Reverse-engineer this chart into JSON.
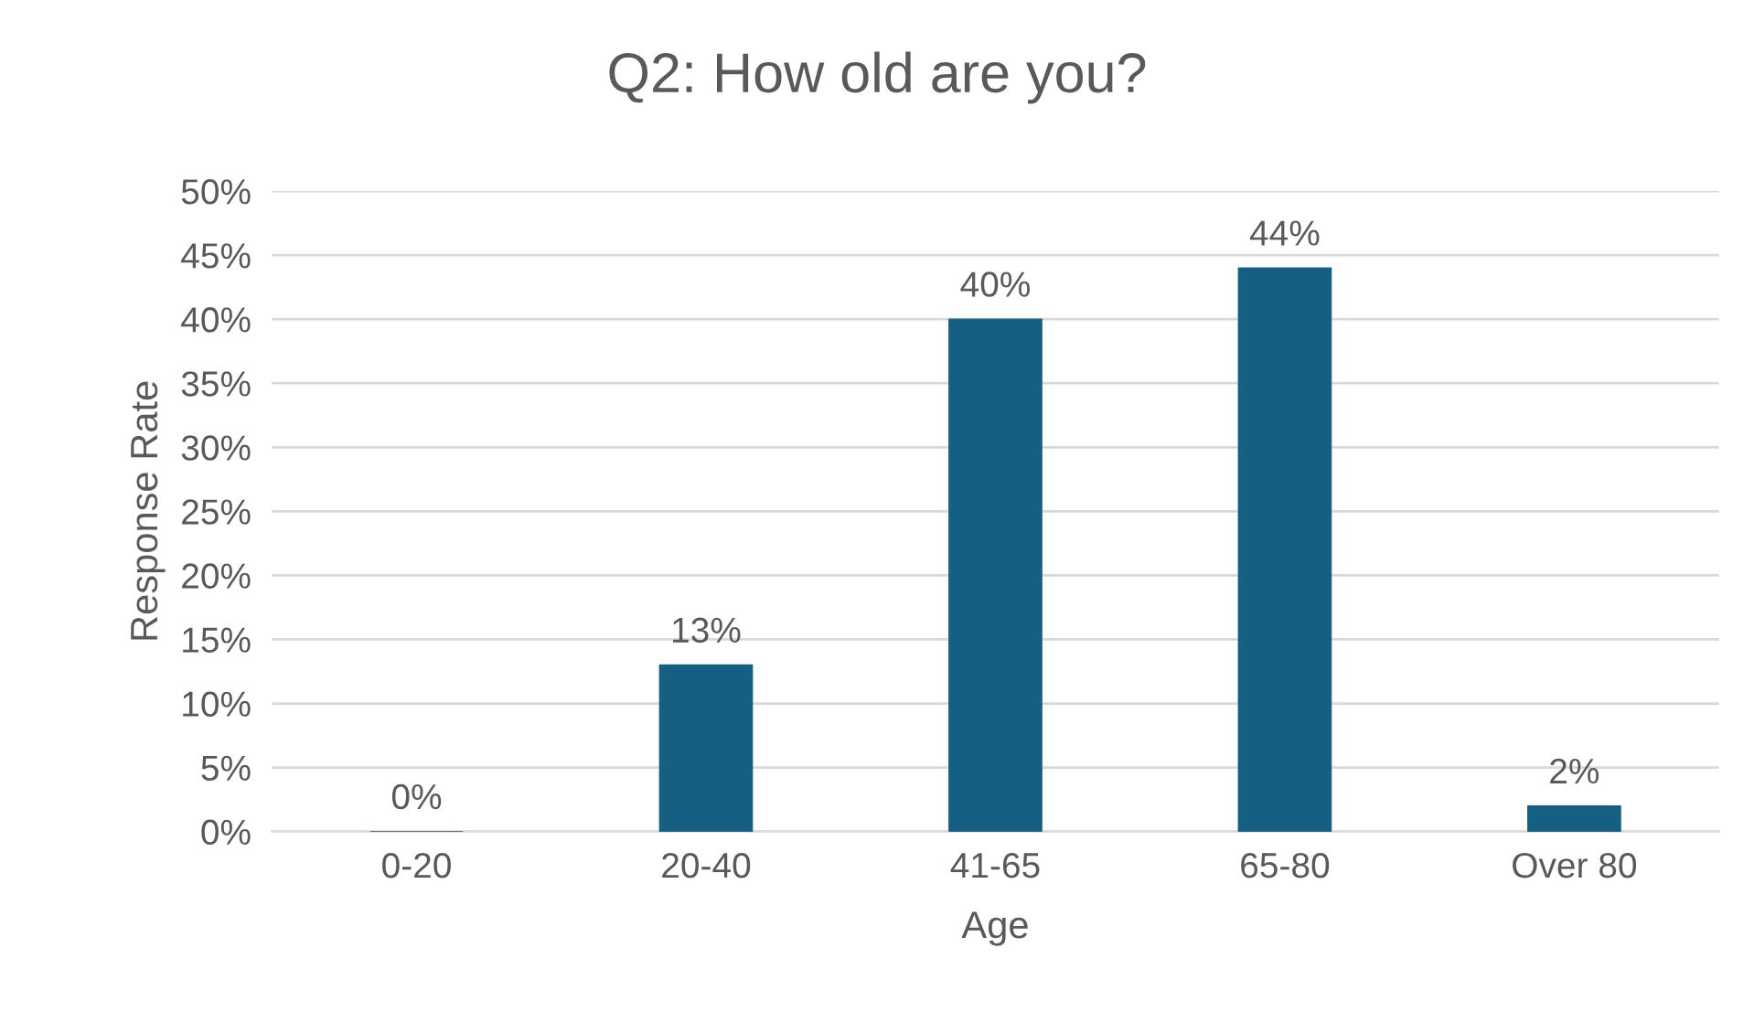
{
  "chart_data": {
    "type": "bar",
    "title": "Q2: How old are you?",
    "xlabel": "Age",
    "ylabel": "Response Rate",
    "categories": [
      "0-20",
      "20-40",
      "41-65",
      "65-80",
      "Over 80"
    ],
    "values": [
      0,
      13,
      40,
      44,
      2
    ],
    "value_labels": [
      "0%",
      "13%",
      "40%",
      "44%",
      "2%"
    ],
    "color": "#156082",
    "ylim": [
      0,
      50
    ],
    "yticks": [
      {
        "value": 0,
        "label": "0%"
      },
      {
        "value": 5,
        "label": "5%"
      },
      {
        "value": 10,
        "label": "10%"
      },
      {
        "value": 15,
        "label": "15%"
      },
      {
        "value": 20,
        "label": "20%"
      },
      {
        "value": 25,
        "label": "25%"
      },
      {
        "value": 30,
        "label": "30%"
      },
      {
        "value": 35,
        "label": "35%"
      },
      {
        "value": 40,
        "label": "40%"
      },
      {
        "value": 45,
        "label": "45%"
      },
      {
        "value": 50,
        "label": "50%"
      }
    ],
    "grid": "y",
    "legend": false
  }
}
